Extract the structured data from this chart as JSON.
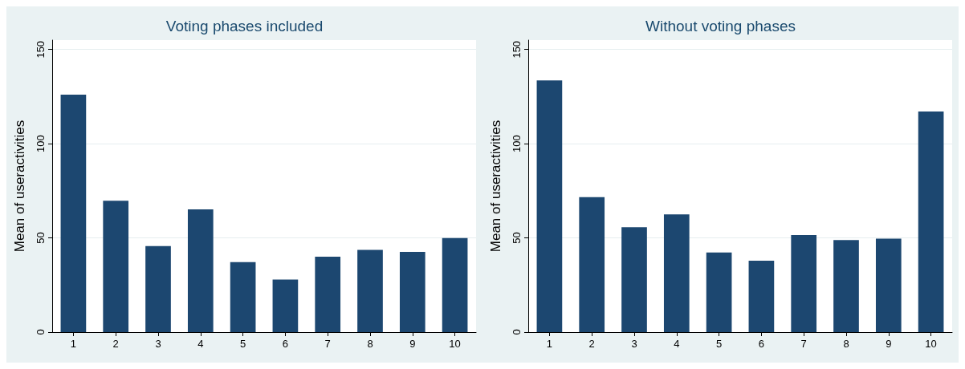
{
  "chart_data": [
    {
      "type": "bar",
      "title": "Voting phases included",
      "ylabel": "Mean of useractivities",
      "categories": [
        "1",
        "2",
        "3",
        "4",
        "5",
        "6",
        "7",
        "8",
        "9",
        "10"
      ],
      "values": [
        126.0,
        69.7,
        45.7,
        65.1,
        37.1,
        27.9,
        40.0,
        43.6,
        42.6,
        49.9
      ],
      "color": "#1c4770",
      "ylim": [
        0,
        155
      ],
      "yticks": [
        0,
        50,
        100,
        150
      ],
      "grid": "y"
    },
    {
      "type": "bar",
      "title": "Without voting phases",
      "ylabel": "Mean of useractivities",
      "categories": [
        "1",
        "2",
        "3",
        "4",
        "5",
        "6",
        "7",
        "8",
        "9",
        "10"
      ],
      "values": [
        133.6,
        71.6,
        55.7,
        62.5,
        42.3,
        37.9,
        51.5,
        48.9,
        49.6,
        117.1
      ],
      "color": "#1c4770",
      "ylim": [
        0,
        155
      ],
      "yticks": [
        0,
        50,
        100,
        150
      ],
      "grid": "y"
    }
  ]
}
